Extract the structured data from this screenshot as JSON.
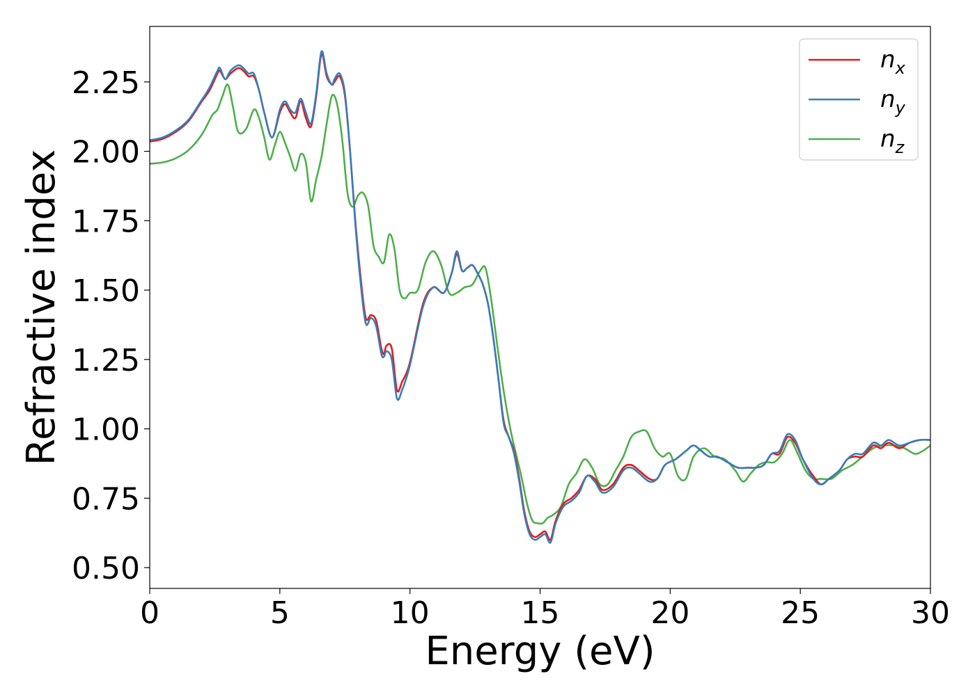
{
  "chart_data": {
    "type": "line",
    "xlabel": "Energy (eV)",
    "ylabel": "Refractive index",
    "xlim": [
      0,
      30
    ],
    "ylim": [
      0.425,
      2.45
    ],
    "xticks": [
      0,
      5,
      10,
      15,
      20,
      25,
      30
    ],
    "xtick_labels": [
      "0",
      "5",
      "10",
      "15",
      "20",
      "25",
      "30"
    ],
    "yticks": [
      0.5,
      0.75,
      1.0,
      1.25,
      1.5,
      1.75,
      2.0,
      2.25
    ],
    "ytick_labels": [
      "0.50",
      "0.75",
      "1.00",
      "1.25",
      "1.50",
      "1.75",
      "2.00",
      "2.25"
    ],
    "grid": false,
    "legend_position": "top-right",
    "series": [
      {
        "name": "n_x",
        "legend_base": "n",
        "legend_sub": "x",
        "color": "#e41a1c",
        "x": [
          0,
          0.5,
          1,
          1.5,
          2,
          2.3,
          2.6,
          2.7,
          2.9,
          3.1,
          3.4,
          3.6,
          3.8,
          4,
          4.2,
          4.4,
          4.7,
          5,
          5.2,
          5.4,
          5.6,
          5.8,
          6,
          6.2,
          6.4,
          6.6,
          6.8,
          7,
          7.1,
          7.3,
          7.5,
          7.7,
          7.9,
          8.1,
          8.3,
          8.5,
          8.7,
          8.9,
          9,
          9.1,
          9.3,
          9.5,
          9.7,
          10,
          10.5,
          10.9,
          11.3,
          11.6,
          11.8,
          12,
          12.2,
          12.4,
          12.6,
          12.8,
          13,
          13.2,
          13.4,
          13.6,
          13.8,
          14,
          14.2,
          14.4,
          14.6,
          14.8,
          15,
          15.2,
          15.4,
          15.6,
          15.9,
          16.2,
          16.5,
          16.8,
          17.1,
          17.4,
          17.8,
          18.2,
          18.5,
          18.8,
          19.2,
          19.5,
          19.8,
          20.2,
          20.6,
          20.9,
          21.2,
          21.5,
          21.8,
          22.2,
          22.6,
          23,
          23.3,
          23.6,
          23.9,
          24.2,
          24.5,
          24.8,
          25.1,
          25.5,
          25.8,
          26.1,
          26.5,
          26.8,
          27.1,
          27.4,
          27.8,
          28.1,
          28.4,
          28.8,
          29.2,
          29.6,
          30
        ],
        "y": [
          2.035,
          2.045,
          2.07,
          2.11,
          2.18,
          2.22,
          2.28,
          2.29,
          2.26,
          2.28,
          2.3,
          2.29,
          2.27,
          2.27,
          2.22,
          2.14,
          2.05,
          2.14,
          2.17,
          2.14,
          2.12,
          2.18,
          2.12,
          2.09,
          2.2,
          2.35,
          2.27,
          2.24,
          2.25,
          2.27,
          2.2,
          2.0,
          1.75,
          1.55,
          1.4,
          1.41,
          1.39,
          1.29,
          1.27,
          1.3,
          1.29,
          1.14,
          1.17,
          1.24,
          1.45,
          1.51,
          1.49,
          1.56,
          1.63,
          1.57,
          1.58,
          1.59,
          1.56,
          1.52,
          1.45,
          1.33,
          1.18,
          1.03,
          0.97,
          0.92,
          0.82,
          0.7,
          0.63,
          0.61,
          0.62,
          0.63,
          0.6,
          0.67,
          0.73,
          0.75,
          0.78,
          0.83,
          0.82,
          0.78,
          0.8,
          0.86,
          0.87,
          0.85,
          0.82,
          0.82,
          0.87,
          0.89,
          0.92,
          0.94,
          0.92,
          0.9,
          0.9,
          0.88,
          0.86,
          0.86,
          0.86,
          0.87,
          0.91,
          0.91,
          0.97,
          0.95,
          0.89,
          0.83,
          0.8,
          0.82,
          0.85,
          0.89,
          0.9,
          0.9,
          0.94,
          0.93,
          0.95,
          0.93,
          0.95,
          0.96,
          0.96
        ]
      },
      {
        "name": "n_y",
        "legend_base": "n",
        "legend_sub": "y",
        "color": "#377eb8",
        "x": [
          0,
          0.5,
          1,
          1.5,
          2,
          2.3,
          2.6,
          2.7,
          2.9,
          3.1,
          3.4,
          3.6,
          3.8,
          4,
          4.2,
          4.4,
          4.7,
          5,
          5.2,
          5.4,
          5.6,
          5.8,
          6,
          6.2,
          6.4,
          6.6,
          6.8,
          7,
          7.1,
          7.3,
          7.5,
          7.7,
          7.9,
          8.1,
          8.3,
          8.5,
          8.7,
          8.9,
          9,
          9.1,
          9.3,
          9.5,
          9.7,
          10,
          10.5,
          10.9,
          11.3,
          11.6,
          11.8,
          12,
          12.2,
          12.4,
          12.6,
          12.8,
          13,
          13.2,
          13.4,
          13.6,
          13.8,
          14,
          14.2,
          14.4,
          14.6,
          14.8,
          15,
          15.2,
          15.4,
          15.6,
          15.9,
          16.2,
          16.5,
          16.8,
          17.1,
          17.4,
          17.8,
          18.2,
          18.5,
          18.8,
          19.2,
          19.5,
          19.8,
          20.2,
          20.6,
          20.9,
          21.2,
          21.5,
          21.8,
          22.2,
          22.6,
          23,
          23.3,
          23.6,
          23.9,
          24.2,
          24.5,
          24.8,
          25.1,
          25.5,
          25.8,
          26.1,
          26.5,
          26.8,
          27.1,
          27.4,
          27.8,
          28.1,
          28.4,
          28.8,
          29.2,
          29.6,
          30
        ],
        "y": [
          2.04,
          2.05,
          2.075,
          2.115,
          2.185,
          2.23,
          2.29,
          2.3,
          2.26,
          2.29,
          2.31,
          2.3,
          2.28,
          2.28,
          2.22,
          2.14,
          2.05,
          2.15,
          2.18,
          2.15,
          2.14,
          2.19,
          2.14,
          2.1,
          2.21,
          2.36,
          2.28,
          2.24,
          2.26,
          2.28,
          2.21,
          2.0,
          1.74,
          1.53,
          1.38,
          1.4,
          1.37,
          1.27,
          1.26,
          1.28,
          1.25,
          1.11,
          1.14,
          1.23,
          1.44,
          1.51,
          1.49,
          1.56,
          1.64,
          1.57,
          1.58,
          1.59,
          1.56,
          1.52,
          1.45,
          1.33,
          1.18,
          1.02,
          0.97,
          0.91,
          0.81,
          0.69,
          0.62,
          0.6,
          0.61,
          0.62,
          0.59,
          0.66,
          0.72,
          0.74,
          0.77,
          0.83,
          0.81,
          0.77,
          0.79,
          0.85,
          0.86,
          0.84,
          0.81,
          0.82,
          0.87,
          0.89,
          0.92,
          0.94,
          0.92,
          0.9,
          0.9,
          0.88,
          0.86,
          0.86,
          0.86,
          0.87,
          0.91,
          0.92,
          0.98,
          0.96,
          0.89,
          0.82,
          0.8,
          0.82,
          0.85,
          0.89,
          0.91,
          0.91,
          0.95,
          0.94,
          0.96,
          0.94,
          0.95,
          0.96,
          0.96
        ]
      },
      {
        "name": "n_z",
        "legend_base": "n",
        "legend_sub": "z",
        "color": "#4daf4a",
        "x": [
          0,
          0.5,
          1,
          1.5,
          2,
          2.4,
          2.6,
          2.8,
          3.0,
          3.2,
          3.4,
          3.7,
          4.0,
          4.2,
          4.4,
          4.6,
          4.8,
          5.0,
          5.2,
          5.4,
          5.6,
          5.8,
          6.0,
          6.2,
          6.4,
          6.6,
          6.8,
          7.0,
          7.2,
          7.4,
          7.6,
          7.8,
          8.0,
          8.2,
          8.4,
          8.6,
          8.8,
          9.0,
          9.2,
          9.4,
          9.6,
          9.8,
          10.0,
          10.3,
          10.6,
          10.9,
          11.2,
          11.5,
          11.8,
          12.1,
          12.4,
          12.7,
          12.9,
          13.1,
          13.3,
          13.5,
          13.7,
          13.9,
          14.1,
          14.3,
          14.5,
          14.7,
          14.9,
          15.1,
          15.3,
          15.5,
          15.8,
          16.1,
          16.4,
          16.7,
          17.0,
          17.3,
          17.6,
          17.9,
          18.2,
          18.5,
          18.8,
          19.1,
          19.4,
          19.7,
          20.0,
          20.3,
          20.6,
          20.9,
          21.3,
          21.7,
          22.1,
          22.5,
          22.8,
          23.1,
          23.4,
          23.7,
          24.0,
          24.3,
          24.6,
          24.9,
          25.2,
          25.5,
          25.8,
          26.2,
          26.6,
          27.0,
          27.4,
          27.8,
          28.2,
          28.6,
          29.0,
          29.4,
          29.7,
          30
        ],
        "y": [
          1.955,
          1.96,
          1.975,
          2.005,
          2.06,
          2.13,
          2.15,
          2.2,
          2.24,
          2.16,
          2.07,
          2.08,
          2.15,
          2.12,
          2.05,
          1.97,
          2.02,
          2.07,
          2.03,
          1.98,
          1.93,
          1.99,
          1.96,
          1.82,
          1.9,
          1.98,
          2.1,
          2.2,
          2.17,
          2.04,
          1.85,
          1.8,
          1.84,
          1.85,
          1.8,
          1.66,
          1.62,
          1.6,
          1.7,
          1.65,
          1.5,
          1.47,
          1.49,
          1.5,
          1.6,
          1.64,
          1.59,
          1.49,
          1.49,
          1.51,
          1.52,
          1.57,
          1.58,
          1.48,
          1.34,
          1.2,
          1.08,
          0.98,
          0.9,
          0.82,
          0.73,
          0.67,
          0.66,
          0.66,
          0.68,
          0.69,
          0.72,
          0.8,
          0.84,
          0.89,
          0.86,
          0.8,
          0.8,
          0.85,
          0.9,
          0.97,
          0.99,
          0.99,
          0.93,
          0.9,
          0.91,
          0.83,
          0.82,
          0.9,
          0.93,
          0.9,
          0.89,
          0.85,
          0.81,
          0.84,
          0.87,
          0.88,
          0.88,
          0.91,
          0.96,
          0.91,
          0.85,
          0.82,
          0.82,
          0.82,
          0.85,
          0.87,
          0.9,
          0.93,
          0.94,
          0.94,
          0.93,
          0.91,
          0.92,
          0.94
        ]
      }
    ]
  }
}
